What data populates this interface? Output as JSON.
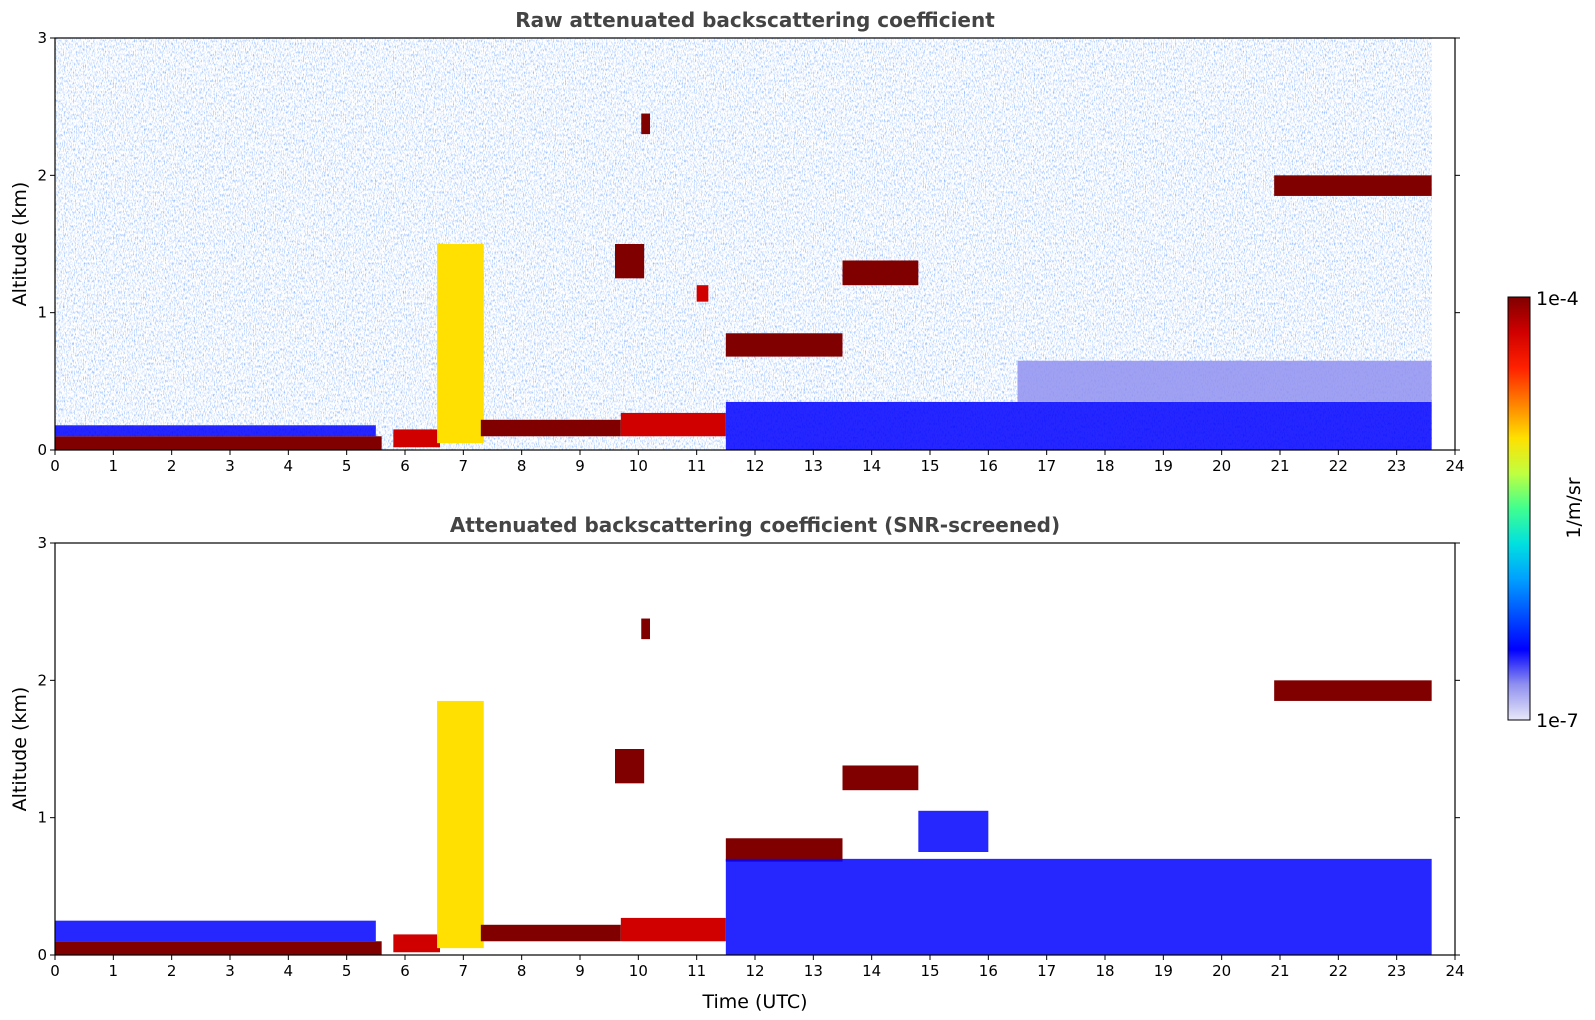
{
  "chart_data": [
    {
      "type": "heatmap",
      "title": "Raw attenuated backscattering coefficient",
      "xlabel": "",
      "ylabel": "Altitude (km)",
      "xlim": [
        0,
        24
      ],
      "ylim": [
        0,
        3
      ],
      "xticks": [
        "0",
        "1",
        "2",
        "3",
        "4",
        "5",
        "6",
        "7",
        "8",
        "9",
        "10",
        "11",
        "12",
        "13",
        "14",
        "15",
        "16",
        "17",
        "18",
        "19",
        "20",
        "21",
        "22",
        "23",
        "24"
      ],
      "yticks": [
        "0",
        "1",
        "2",
        "3"
      ],
      "color_scale": "log",
      "features": [
        {
          "t0": 0,
          "t1": 5.6,
          "z0": 0,
          "z1": 0.1,
          "level": 1.0
        },
        {
          "t0": 0,
          "t1": 5.5,
          "z0": 0.1,
          "z1": 0.18,
          "level": 0.15
        },
        {
          "t0": 5.8,
          "t1": 6.6,
          "z0": 0.02,
          "z1": 0.15,
          "level": 0.95
        },
        {
          "t0": 6.55,
          "t1": 7.35,
          "z0": 0.05,
          "z1": 1.5,
          "level": 0.65
        },
        {
          "t0": 7.3,
          "t1": 9.7,
          "z0": 0.1,
          "z1": 0.22,
          "level": 0.98
        },
        {
          "t0": 9.7,
          "t1": 11.5,
          "z0": 0.1,
          "z1": 0.27,
          "level": 0.92
        },
        {
          "t0": 9.6,
          "t1": 10.1,
          "z0": 1.25,
          "z1": 1.5,
          "level": 0.97
        },
        {
          "t0": 10.05,
          "t1": 10.2,
          "z0": 2.3,
          "z1": 2.45,
          "level": 0.97
        },
        {
          "t0": 11.0,
          "t1": 11.2,
          "z0": 1.08,
          "z1": 1.2,
          "level": 0.95
        },
        {
          "t0": 11.5,
          "t1": 13.5,
          "z0": 0.68,
          "z1": 0.85,
          "level": 0.97
        },
        {
          "t0": 13.5,
          "t1": 14.8,
          "z0": 1.2,
          "z1": 1.38,
          "level": 0.97
        },
        {
          "t0": 20.9,
          "t1": 23.6,
          "z0": 1.85,
          "z1": 2.0,
          "level": 1.0
        },
        {
          "t0": 11.5,
          "t1": 23.6,
          "z0": 0,
          "z1": 0.35,
          "level": 0.2
        },
        {
          "t0": 16.5,
          "t1": 23.6,
          "z0": 0.35,
          "z1": 0.65,
          "level": 0.12
        }
      ]
    },
    {
      "type": "heatmap",
      "title": "Attenuated backscattering coefficient (SNR-screened)",
      "xlabel": "Time (UTC)",
      "ylabel": "Altitude (km)",
      "xlim": [
        0,
        24
      ],
      "ylim": [
        0,
        3
      ],
      "xticks": [
        "0",
        "1",
        "2",
        "3",
        "4",
        "5",
        "6",
        "7",
        "8",
        "9",
        "10",
        "11",
        "12",
        "13",
        "14",
        "15",
        "16",
        "17",
        "18",
        "19",
        "20",
        "21",
        "22",
        "23",
        "24"
      ],
      "yticks": [
        "0",
        "1",
        "2",
        "3"
      ],
      "color_scale": "log",
      "features": [
        {
          "t0": 0,
          "t1": 5.6,
          "z0": 0,
          "z1": 0.1,
          "level": 1.0
        },
        {
          "t0": 0,
          "t1": 5.5,
          "z0": 0.1,
          "z1": 0.25,
          "level": 0.2
        },
        {
          "t0": 5.8,
          "t1": 6.6,
          "z0": 0.02,
          "z1": 0.15,
          "level": 0.95
        },
        {
          "t0": 6.55,
          "t1": 7.35,
          "z0": 0.05,
          "z1": 1.85,
          "level": 0.65
        },
        {
          "t0": 7.3,
          "t1": 9.7,
          "z0": 0.1,
          "z1": 0.22,
          "level": 1.0
        },
        {
          "t0": 9.7,
          "t1": 11.5,
          "z0": 0.1,
          "z1": 0.27,
          "level": 0.92
        },
        {
          "t0": 9.6,
          "t1": 10.1,
          "z0": 1.25,
          "z1": 1.5,
          "level": 1.0
        },
        {
          "t0": 10.05,
          "t1": 10.2,
          "z0": 2.3,
          "z1": 2.45,
          "level": 1.0
        },
        {
          "t0": 11.5,
          "t1": 13.5,
          "z0": 0.68,
          "z1": 0.85,
          "level": 1.0
        },
        {
          "t0": 13.5,
          "t1": 14.8,
          "z0": 1.2,
          "z1": 1.38,
          "level": 1.0
        },
        {
          "t0": 20.9,
          "t1": 23.6,
          "z0": 1.85,
          "z1": 2.0,
          "level": 1.0
        },
        {
          "t0": 11.5,
          "t1": 23.6,
          "z0": 0,
          "z1": 0.7,
          "level": 0.2
        },
        {
          "t0": 14.8,
          "t1": 16.0,
          "z0": 0.75,
          "z1": 1.05,
          "level": 0.2
        }
      ]
    }
  ],
  "colorbar": {
    "label": "1/m/sr",
    "max_label": "1e-4",
    "min_label": "1e-7",
    "colors": [
      "#e8e8f8",
      "#9090f0",
      "#0000ff",
      "#0050ff",
      "#00a0ff",
      "#00e0e0",
      "#40ff90",
      "#c0ff40",
      "#ffe000",
      "#ff8000",
      "#ff2000",
      "#d00000",
      "#800000"
    ]
  }
}
